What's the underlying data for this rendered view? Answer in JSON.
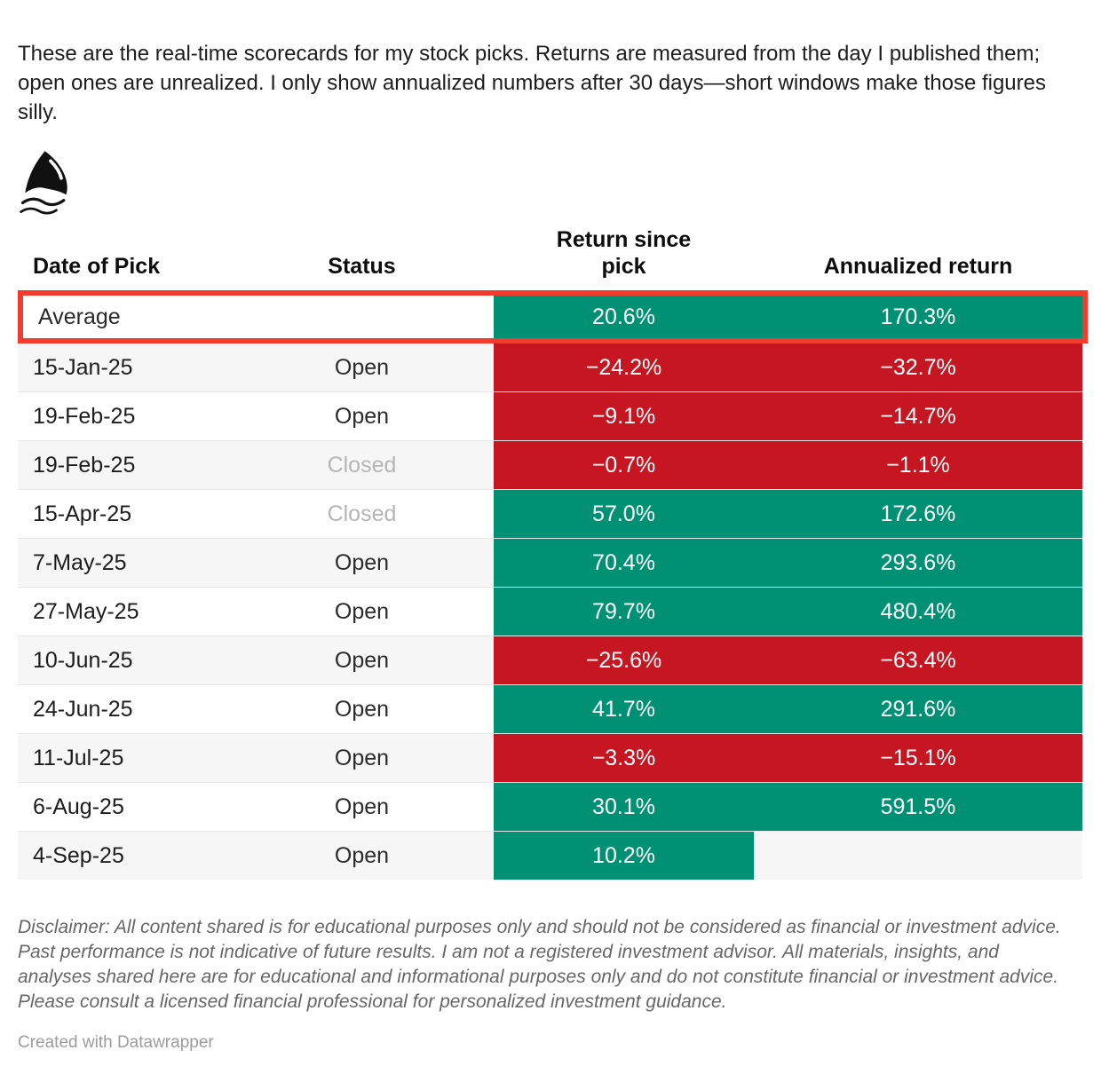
{
  "intro": "These are the real-time scorecards for my stock picks. Returns are measured from the day I published them; open ones are unrealized. I only show annualized numbers after 30 days—short windows make those figures silly.",
  "logo": {
    "name": "shark-fin"
  },
  "colors": {
    "positive": "#009174",
    "negative": "#c51622",
    "highlight": "#f23d2e"
  },
  "table": {
    "columns": [
      "Date of Pick",
      "Status",
      "Return since pick",
      "Annualized return"
    ],
    "average_row": {
      "label": "Average",
      "return_since_pick": "20.6%",
      "return_sentiment": "positive",
      "annualized_return": "170.3%",
      "annualized_sentiment": "positive"
    },
    "rows": [
      {
        "date": "15-Jan-25",
        "status": "Open",
        "return_since_pick": "−24.2%",
        "return_sentiment": "negative",
        "annualized_return": "−32.7%",
        "annualized_sentiment": "negative"
      },
      {
        "date": "19-Feb-25",
        "status": "Open",
        "return_since_pick": "−9.1%",
        "return_sentiment": "negative",
        "annualized_return": "−14.7%",
        "annualized_sentiment": "negative"
      },
      {
        "date": "19-Feb-25",
        "status": "Closed",
        "return_since_pick": "−0.7%",
        "return_sentiment": "negative",
        "annualized_return": "−1.1%",
        "annualized_sentiment": "negative"
      },
      {
        "date": "15-Apr-25",
        "status": "Closed",
        "return_since_pick": "57.0%",
        "return_sentiment": "positive",
        "annualized_return": "172.6%",
        "annualized_sentiment": "positive"
      },
      {
        "date": "7-May-25",
        "status": "Open",
        "return_since_pick": "70.4%",
        "return_sentiment": "positive",
        "annualized_return": "293.6%",
        "annualized_sentiment": "positive"
      },
      {
        "date": "27-May-25",
        "status": "Open",
        "return_since_pick": "79.7%",
        "return_sentiment": "positive",
        "annualized_return": "480.4%",
        "annualized_sentiment": "positive"
      },
      {
        "date": "10-Jun-25",
        "status": "Open",
        "return_since_pick": "−25.6%",
        "return_sentiment": "negative",
        "annualized_return": "−63.4%",
        "annualized_sentiment": "negative"
      },
      {
        "date": "24-Jun-25",
        "status": "Open",
        "return_since_pick": "41.7%",
        "return_sentiment": "positive",
        "annualized_return": "291.6%",
        "annualized_sentiment": "positive"
      },
      {
        "date": "11-Jul-25",
        "status": "Open",
        "return_since_pick": "−3.3%",
        "return_sentiment": "negative",
        "annualized_return": "−15.1%",
        "annualized_sentiment": "negative"
      },
      {
        "date": "6-Aug-25",
        "status": "Open",
        "return_since_pick": "30.1%",
        "return_sentiment": "positive",
        "annualized_return": "591.5%",
        "annualized_sentiment": "positive"
      },
      {
        "date": "4-Sep-25",
        "status": "Open",
        "return_since_pick": "10.2%",
        "return_sentiment": "positive",
        "annualized_return": "",
        "annualized_sentiment": "none"
      }
    ]
  },
  "chart_data": {
    "type": "table",
    "title": "",
    "columns": [
      "Date of Pick",
      "Status",
      "Return since pick",
      "Annualized return"
    ],
    "average": {
      "return_since_pick_pct": 20.6,
      "annualized_return_pct": 170.3
    },
    "rows": [
      [
        "15-Jan-25",
        "Open",
        -24.2,
        -32.7
      ],
      [
        "19-Feb-25",
        "Open",
        -9.1,
        -14.7
      ],
      [
        "19-Feb-25",
        "Closed",
        -0.7,
        -1.1
      ],
      [
        "15-Apr-25",
        "Closed",
        57.0,
        172.6
      ],
      [
        "7-May-25",
        "Open",
        70.4,
        293.6
      ],
      [
        "27-May-25",
        "Open",
        79.7,
        480.4
      ],
      [
        "10-Jun-25",
        "Open",
        -25.6,
        -63.4
      ],
      [
        "24-Jun-25",
        "Open",
        41.7,
        291.6
      ],
      [
        "11-Jul-25",
        "Open",
        -3.3,
        -15.1
      ],
      [
        "6-Aug-25",
        "Open",
        30.1,
        591.5
      ],
      [
        "4-Sep-25",
        "Open",
        10.2,
        null
      ]
    ],
    "color_coding": "green = positive return, red = negative return"
  },
  "disclaimer": "Disclaimer: All content shared is for educational purposes only and should not be considered as financial or investment advice. Past performance is not indicative of future results. I am not a registered investment advisor. All materials, insights, and analyses shared here are for educational and informational purposes only and do not constitute financial or investment advice. Please consult a licensed financial professional for personalized investment guidance.",
  "footer": {
    "credit": "Created with Datawrapper"
  }
}
